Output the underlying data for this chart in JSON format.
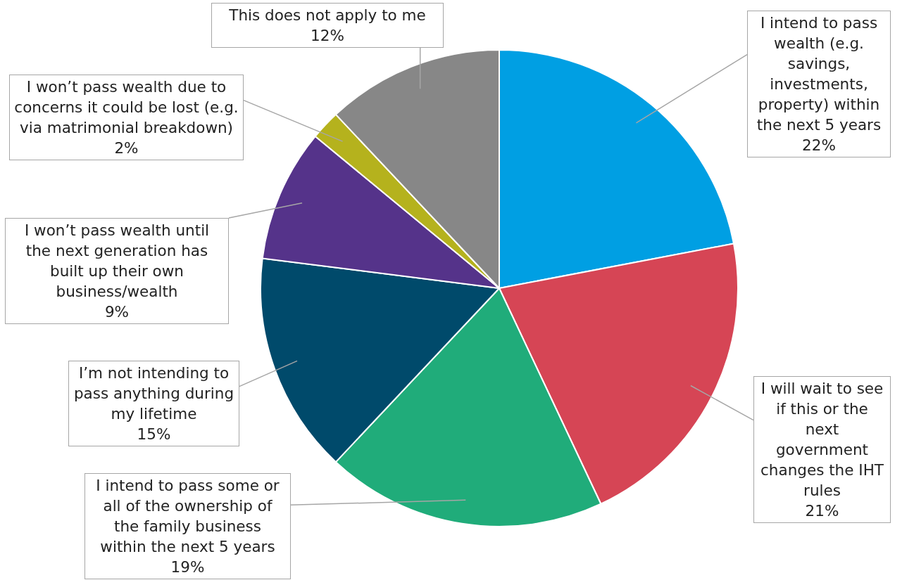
{
  "chart_data": {
    "type": "pie",
    "categories": [
      "I intend to pass wealth (e.g. savings, investments, property) within the next 5 years",
      "I will wait to see if this or the next government changes the IHT rules",
      "I intend to pass some or all of the ownership of the family business within the next 5 years",
      "I’m not intending to pass anything during my lifetime",
      "I won’t pass wealth until the next generation has built up their own business/wealth",
      "I won’t pass wealth due to concerns it could be lost (e.g. via matrimonial breakdown)",
      "This does not apply to me"
    ],
    "values": [
      22,
      21,
      19,
      15,
      9,
      2,
      12
    ],
    "colors": [
      "#009fe3",
      "#d64555",
      "#20ac7a",
      "#004a6b",
      "#55338a",
      "#b5b21d",
      "#878787"
    ],
    "value_labels": [
      "22%",
      "21%",
      "19%",
      "15%",
      "9%",
      "2%",
      "12%"
    ],
    "legend": false
  }
}
